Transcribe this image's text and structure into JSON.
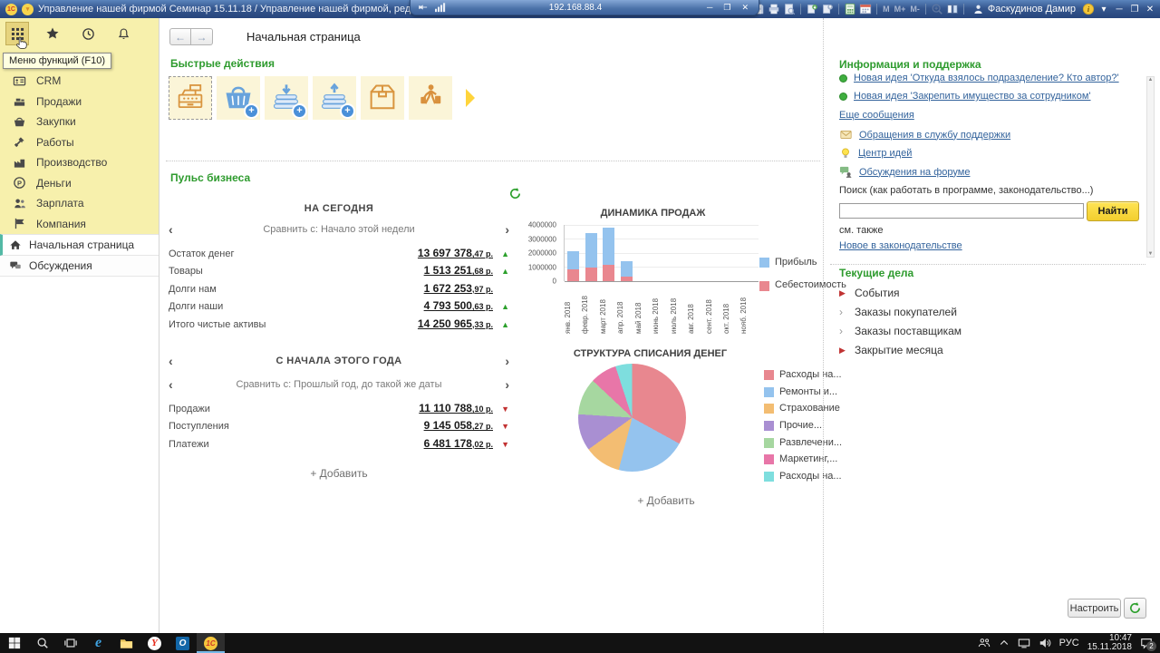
{
  "window": {
    "title": "Управление нашей фирмой  Семинар 15.11.18 / Управление нашей фирмой, редакция 1.6  (1С:Предприятие)",
    "rdp_address": "192.168.88.4",
    "toolbar": {
      "memory_labels": [
        "M",
        "M+",
        "M-"
      ],
      "user_name": "Фаскудинов Дамир"
    }
  },
  "sidebar": {
    "tooltip": "Меню функций (F10)",
    "sections": [
      {
        "label": "CRM",
        "icon": "crm"
      },
      {
        "label": "Продажи",
        "icon": "sales"
      },
      {
        "label": "Закупки",
        "icon": "purchases"
      },
      {
        "label": "Работы",
        "icon": "works"
      },
      {
        "label": "Производство",
        "icon": "production"
      },
      {
        "label": "Деньги",
        "icon": "money"
      },
      {
        "label": "Зарплата",
        "icon": "salary"
      },
      {
        "label": "Компания",
        "icon": "company"
      }
    ],
    "pages": [
      {
        "label": "Начальная страница",
        "icon": "home",
        "active": true
      },
      {
        "label": "Обсуждения",
        "icon": "discussions",
        "active": false
      }
    ]
  },
  "header": {
    "title": "Начальная страница"
  },
  "quick_actions": {
    "title": "Быстрые действия",
    "items": [
      {
        "icon": "cash-register",
        "selected": true
      },
      {
        "icon": "purchase-basket",
        "badge": "+"
      },
      {
        "icon": "money-receipt",
        "badge": "+"
      },
      {
        "icon": "money-payment",
        "badge": "+"
      },
      {
        "icon": "package"
      },
      {
        "icon": "courier"
      }
    ]
  },
  "pulse": {
    "title": "Пульс бизнеса",
    "today": {
      "title": "НА СЕГОДНЯ",
      "compare": "Сравнить с: Начало этой недели",
      "rows": [
        {
          "label": "Остаток денег",
          "int": "13 697 378",
          "frac": ",47 р.",
          "trend": "up"
        },
        {
          "label": "Товары",
          "int": "1 513 251",
          "frac": ",68 р.",
          "trend": "up"
        },
        {
          "label": "Долги нам",
          "int": "1 672 253",
          "frac": ",97 р.",
          "trend": "none"
        },
        {
          "label": "Долги наши",
          "int": "4 793 500",
          "frac": ",63 р.",
          "trend": "up"
        },
        {
          "label": "Итого чистые активы",
          "int": "14 250 965",
          "frac": ",33 р.",
          "trend": "up"
        }
      ]
    },
    "year": {
      "title": "С НАЧАЛА ЭТОГО ГОДА",
      "compare": "Сравнить с: Прошлый год, до такой же даты",
      "rows": [
        {
          "label": "Продажи",
          "int": "11 110 788",
          "frac": ",10 р.",
          "trend": "down"
        },
        {
          "label": "Поступления",
          "int": "9 145 058",
          "frac": ",27 р.",
          "trend": "down"
        },
        {
          "label": "Платежи",
          "int": "6 481 178",
          "frac": ",02 р.",
          "trend": "down"
        }
      ],
      "add_label": "+ Добавить"
    }
  },
  "chart_data": [
    {
      "type": "bar",
      "stacked": true,
      "title": "ДИНАМИКА ПРОДАЖ",
      "categories": [
        "янв. 2018",
        "февр. 2018",
        "март 2018",
        "апр. 2018",
        "май 2018",
        "июнь 2018",
        "июль 2018",
        "авг. 2018",
        "сент. 2018",
        "окт. 2018",
        "нояб. 2018"
      ],
      "series": [
        {
          "name": "Себестоимость",
          "color": "#e9878f",
          "values": [
            850000,
            1000000,
            1150000,
            300000,
            0,
            0,
            0,
            0,
            0,
            0,
            0
          ]
        },
        {
          "name": "Прибыль",
          "color": "#94c3ee",
          "values": [
            1250000,
            2400000,
            2650000,
            1150000,
            0,
            0,
            0,
            0,
            0,
            0,
            0
          ]
        }
      ],
      "legend": [
        "Прибыль",
        "Себестоимость"
      ],
      "ylim": [
        0,
        4000000
      ],
      "yticks": [
        0,
        1000000,
        2000000,
        3000000,
        4000000
      ],
      "legend_position": "right",
      "grid": true
    },
    {
      "type": "pie",
      "title": "СТРУКТУРА СПИСАНИЯ ДЕНЕГ",
      "slices": [
        {
          "label": "Расходы на...",
          "color": "#e8878f",
          "pct": 33
        },
        {
          "label": "Ремонты  и...",
          "color": "#94c3ee",
          "pct": 21
        },
        {
          "label": "Страхование",
          "color": "#f3bd72",
          "pct": 11
        },
        {
          "label": "Прочие...",
          "color": "#a98fd2",
          "pct": 11
        },
        {
          "label": "Развлечени...",
          "color": "#a6d7a0",
          "pct": 11
        },
        {
          "label": "Маркетинг,...",
          "color": "#e876a8",
          "pct": 8
        },
        {
          "label": "Расходы на...",
          "color": "#7edede",
          "pct": 5
        }
      ],
      "legend_position": "right",
      "add_label": "+ Добавить"
    }
  ],
  "info_panel": {
    "title": "Информация и поддержка",
    "news": [
      "Новая идея 'Откуда взялось подразделение? Кто автор?'",
      "Новая идея 'Закрепить имущество за сотрудником'"
    ],
    "more_label": "Еще сообщения",
    "links": [
      {
        "label": "Обращения в службу поддержки",
        "icon": "envelope"
      },
      {
        "label": "Центр идей",
        "icon": "bulb"
      },
      {
        "label": "Обсуждения на форуме",
        "icon": "forum"
      }
    ],
    "search_label": "Поиск (как работать в программе, законодательство...)",
    "search_value": "",
    "search_button": "Найти",
    "see_also": "см. также",
    "see_also_link": "Новое в законодательстве"
  },
  "todo_panel": {
    "title": "Текущие дела",
    "items": [
      {
        "label": "События",
        "marker": "red"
      },
      {
        "label": "Заказы покупателей",
        "marker": "gray"
      },
      {
        "label": "Заказы поставщикам",
        "marker": "gray"
      },
      {
        "label": "Закрытие месяца",
        "marker": "red"
      }
    ]
  },
  "footer": {
    "configure_label": "Настроить"
  },
  "taskbar": {
    "language": "РУС",
    "time": "10:47",
    "date": "15.11.2018",
    "notification_count": "2"
  }
}
